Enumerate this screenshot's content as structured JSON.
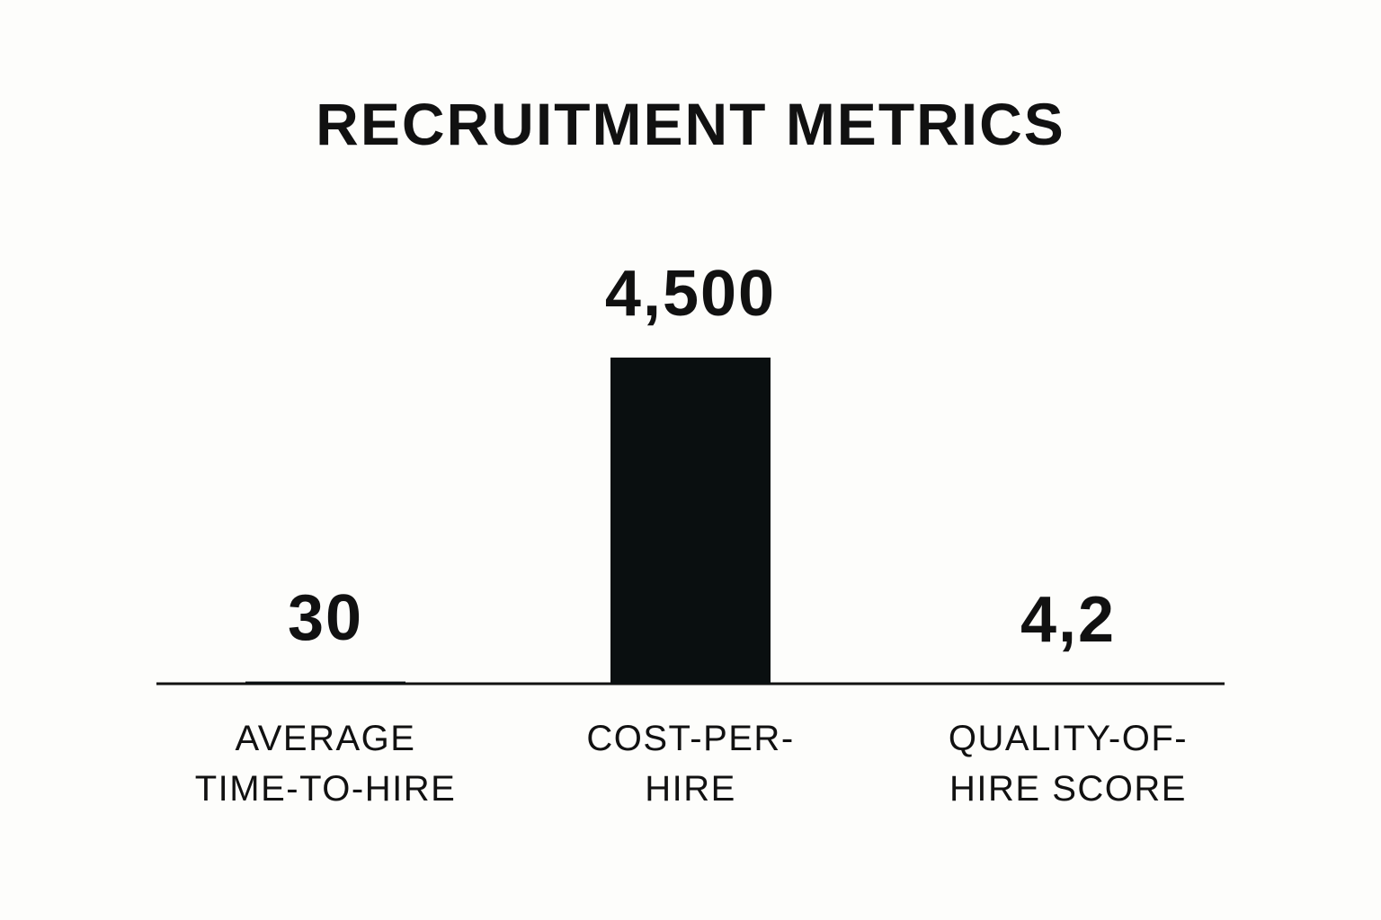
{
  "chart_data": {
    "type": "bar",
    "title": "RECRUITMENT METRICS",
    "categories": [
      "AVERAGE\nTIME-TO-HIRE",
      "COST-PER-\nHIRE",
      "QUALITY-OF-\nHIRE SCORE"
    ],
    "values": [
      30,
      4500,
      4.2
    ],
    "value_labels": [
      "30",
      "4,500",
      "4,2"
    ],
    "color": "#0a0f10"
  }
}
